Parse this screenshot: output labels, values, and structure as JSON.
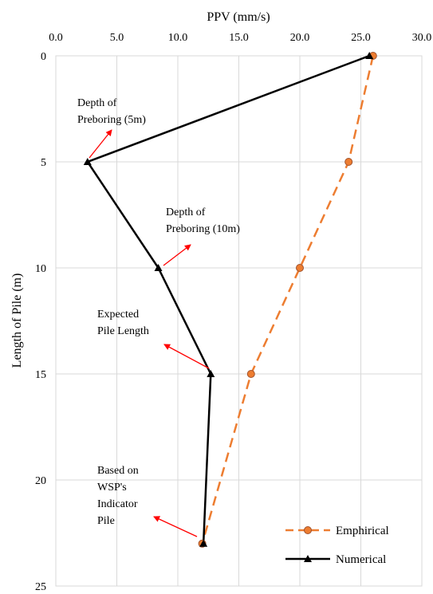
{
  "chart_data": {
    "type": "line",
    "xlabel": "PPV (mm/s)",
    "ylabel": "Length of Pile (m)",
    "xlim": [
      0,
      30
    ],
    "ylim": [
      0,
      25
    ],
    "y_inverted": true,
    "x_axis_position": "top",
    "x_ticks": [
      "0.0",
      "5.0",
      "10.0",
      "15.0",
      "20.0",
      "25.0",
      "30.0"
    ],
    "y_ticks": [
      "0",
      "5",
      "10",
      "15",
      "20",
      "25"
    ],
    "grid": true,
    "legend_position": "bottom-right",
    "series": [
      {
        "name": "Emphirical",
        "color": "#ED7D31",
        "marker_fill": "#ED7D31",
        "marker_edge": "#A0522D",
        "marker": "circle",
        "line_style": "dashed",
        "points": [
          [
            26,
            0
          ],
          [
            24,
            5
          ],
          [
            20,
            10
          ],
          [
            16,
            15
          ],
          [
            12,
            23
          ]
        ]
      },
      {
        "name": "Numerical",
        "color": "#000000",
        "marker": "triangle",
        "line_style": "solid",
        "points": [
          [
            25.7,
            0
          ],
          [
            2.6,
            5
          ],
          [
            8.4,
            10
          ],
          [
            12.7,
            15
          ],
          [
            12.1,
            23
          ]
        ]
      }
    ],
    "annotations": [
      {
        "lines": [
          "Depth of",
          "Preboring (5m)"
        ],
        "target": [
          2.6,
          5
        ]
      },
      {
        "lines": [
          "Depth of",
          "Preboring (10m)"
        ],
        "target": [
          8.4,
          10
        ]
      },
      {
        "lines": [
          "Expected",
          "Pile Length"
        ],
        "target": [
          12.7,
          15
        ]
      },
      {
        "lines": [
          "Based on",
          "WSP's",
          "Indicator",
          "Pile"
        ],
        "target": [
          12.1,
          23
        ]
      }
    ]
  }
}
